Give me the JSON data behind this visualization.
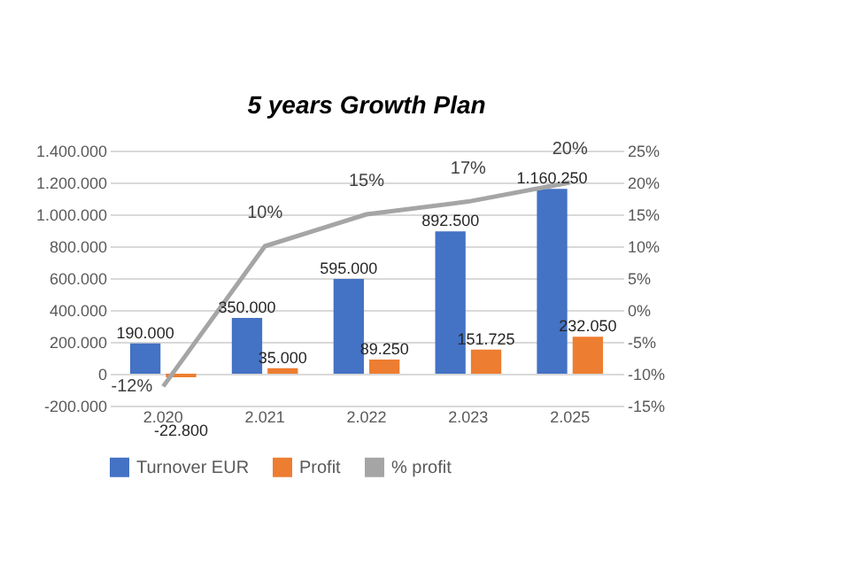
{
  "chart_data": {
    "type": "bar",
    "title": "5 years Growth Plan",
    "categories": [
      "2.020",
      "2.021",
      "2.022",
      "2.023",
      "2.025"
    ],
    "series": [
      {
        "name": "Turnover EUR",
        "color": "#4472c4",
        "values": [
          190000,
          350000,
          595000,
          892500,
          1160250
        ],
        "value_labels": [
          "190.000",
          "350.000",
          "595.000",
          "892.500",
          "1.160.250"
        ]
      },
      {
        "name": "Profit",
        "color": "#ed7d31",
        "values": [
          -22800,
          35000,
          89250,
          151725,
          232050
        ],
        "value_labels": [
          "-22.800",
          "35.000",
          "89.250",
          "151.725",
          "232.050"
        ]
      },
      {
        "name": "% profit",
        "type": "line",
        "axis": "y2",
        "color": "#a5a5a5",
        "values": [
          -12,
          10,
          15,
          17,
          20
        ],
        "value_labels": [
          "-12%",
          "10%",
          "15%",
          "17%",
          "20%"
        ]
      }
    ],
    "ylim": [
      -200000,
      1400000
    ],
    "yticks": [
      {
        "value": -200000,
        "label": "-200.000"
      },
      {
        "value": 0,
        "label": "0"
      },
      {
        "value": 200000,
        "label": "200.000"
      },
      {
        "value": 400000,
        "label": "400.000"
      },
      {
        "value": 600000,
        "label": "600.000"
      },
      {
        "value": 800000,
        "label": "800.000"
      },
      {
        "value": 1000000,
        "label": "1.000.000"
      },
      {
        "value": 1200000,
        "label": "1.200.000"
      },
      {
        "value": 1400000,
        "label": "1.400.000"
      }
    ],
    "y2lim": [
      -15,
      25
    ],
    "y2ticks": [
      {
        "value": -15,
        "label": "-15%"
      },
      {
        "value": -10,
        "label": "-10%"
      },
      {
        "value": -5,
        "label": "-5%"
      },
      {
        "value": 0,
        "label": "0%"
      },
      {
        "value": 5,
        "label": "5%"
      },
      {
        "value": 10,
        "label": "10%"
      },
      {
        "value": 15,
        "label": "15%"
      },
      {
        "value": 20,
        "label": "20%"
      },
      {
        "value": 25,
        "label": "25%"
      }
    ],
    "grid": "y",
    "legend": "bottom"
  }
}
